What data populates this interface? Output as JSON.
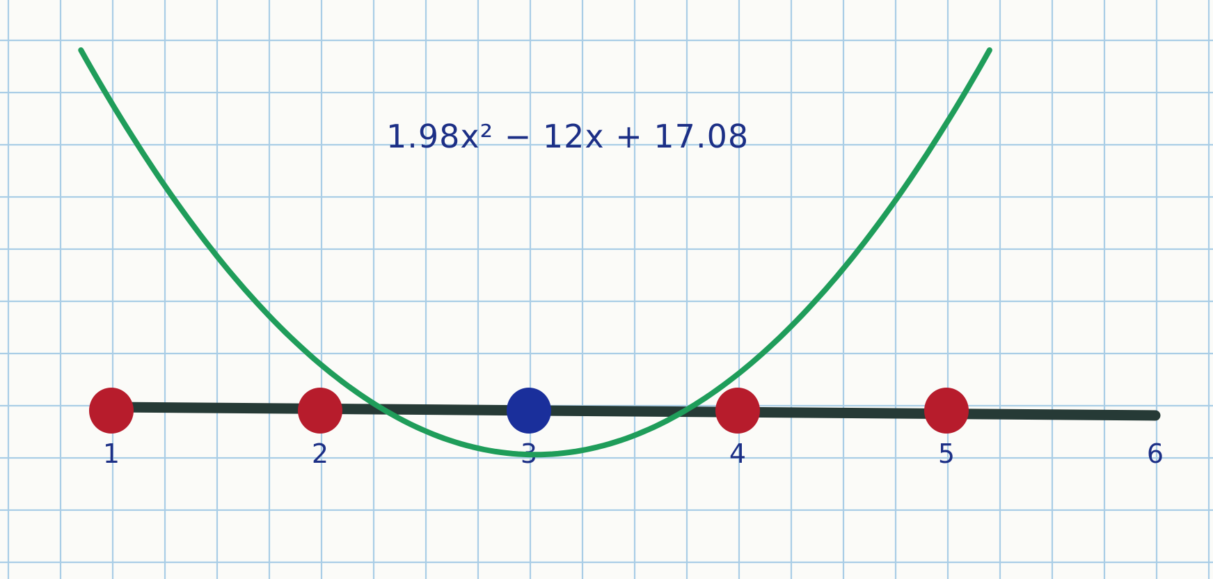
{
  "figure": {
    "equation_text": "1.98x² − 12x + 17.08",
    "curve_coefficients": {
      "a": 1.98,
      "b": -12,
      "c": 17.08
    },
    "number_line": {
      "range": [
        1,
        6
      ],
      "tick_labels": [
        "1",
        "2",
        "3",
        "4",
        "5",
        "6"
      ]
    },
    "points": [
      {
        "x": 1,
        "color": "#b71c2c"
      },
      {
        "x": 2,
        "color": "#b71c2c"
      },
      {
        "x": 3,
        "color": "#1a2f9b"
      },
      {
        "x": 4,
        "color": "#b71c2c"
      },
      {
        "x": 5,
        "color": "#b71c2c"
      }
    ],
    "colors": {
      "grid": "#a9cde6",
      "axis": "#263a36",
      "curve": "#1f9d5a",
      "label_ink": "#1c2f86"
    }
  }
}
